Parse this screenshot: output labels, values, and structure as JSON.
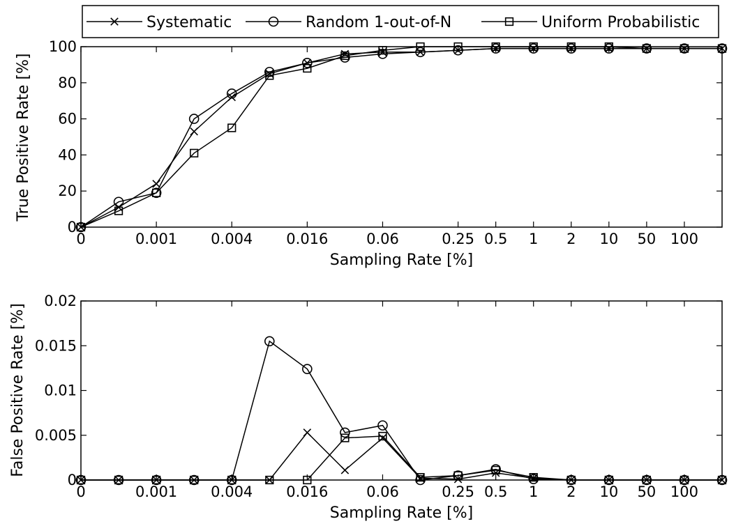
{
  "legend": {
    "placement": "top",
    "entries": [
      {
        "name": "Systematic",
        "marker": "x"
      },
      {
        "name": "Random 1-out-of-N",
        "marker": "circle"
      },
      {
        "name": "Uniform Probabilistic",
        "marker": "square"
      }
    ]
  },
  "chart_data": [
    {
      "type": "line",
      "xlabel": "Sampling Rate [%]",
      "ylabel": "True Positive Rate [%]",
      "x_tick_labels": [
        "0",
        "0.001",
        "0.004",
        "0.016",
        "0.06",
        "0.25",
        "0.5",
        "1",
        "2",
        "10",
        "50",
        "100"
      ],
      "y_tick_labels": [
        "0",
        "20",
        "40",
        "60",
        "80",
        "100"
      ],
      "ylim": [
        0,
        100
      ],
      "grid": false,
      "series": [
        {
          "name": "Systematic",
          "marker": "x",
          "values": [
            0,
            11,
            24,
            53,
            72,
            85,
            91,
            96,
            97,
            97,
            98,
            99,
            99,
            99,
            99,
            99,
            99,
            99
          ]
        },
        {
          "name": "Random 1-out-of-N",
          "marker": "circle",
          "values": [
            0,
            14,
            19,
            60,
            74,
            86,
            91,
            94,
            96,
            97,
            98,
            99,
            99,
            99,
            99,
            99,
            99,
            99
          ]
        },
        {
          "name": "Uniform Probabilistic",
          "marker": "square",
          "values": [
            0,
            9,
            19,
            41,
            55,
            84,
            88,
            95,
            98,
            100,
            100,
            100,
            100,
            100,
            100,
            99,
            99,
            99
          ]
        }
      ]
    },
    {
      "type": "line",
      "xlabel": "Sampling Rate [%]",
      "ylabel": "False Positive Rate [%]",
      "x_tick_labels": [
        "0",
        "0.001",
        "0.004",
        "0.016",
        "0.06",
        "0.25",
        "0.5",
        "1",
        "2",
        "10",
        "50",
        "100"
      ],
      "y_tick_labels": [
        "0",
        "0.005",
        "0.01",
        "0.015",
        "0.02"
      ],
      "ylim": [
        0,
        0.02
      ],
      "grid": false,
      "series": [
        {
          "name": "Systematic",
          "marker": "x",
          "values": [
            0,
            0,
            0,
            0,
            0,
            0,
            0.0053,
            0.0011,
            0.0047,
            0.0002,
            0.0001,
            0.0008,
            0.0002,
            0,
            0,
            0,
            0,
            0
          ]
        },
        {
          "name": "Random 1-out-of-N",
          "marker": "circle",
          "values": [
            0,
            0,
            0,
            0,
            0,
            0.0155,
            0.0124,
            0.0053,
            0.0061,
            0,
            0.0005,
            0.0012,
            0.0001,
            0,
            0,
            0,
            0,
            0
          ]
        },
        {
          "name": "Uniform Probabilistic",
          "marker": "square",
          "values": [
            0,
            0,
            0,
            0,
            0,
            0,
            0,
            0.0047,
            0.0049,
            0.0003,
            0.0005,
            0.0011,
            0.0003,
            0,
            0,
            0,
            0,
            0
          ]
        }
      ]
    }
  ]
}
